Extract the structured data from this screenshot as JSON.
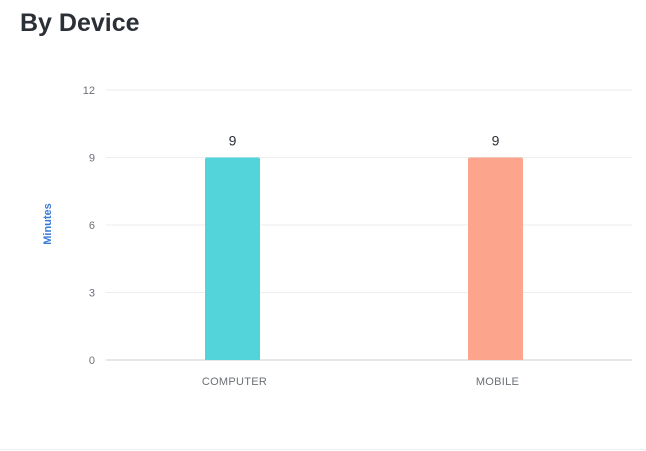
{
  "panel": {
    "title": "By Device"
  },
  "chart_data": {
    "type": "bar",
    "categories": [
      "COMPUTER",
      "MOBILE"
    ],
    "values": [
      9,
      9
    ],
    "data_labels": [
      "9",
      "9"
    ],
    "ylabel": "Minutes",
    "xlabel": "",
    "ylim": [
      0,
      12
    ],
    "yticks": [
      0,
      3,
      6,
      9,
      12
    ],
    "grid": true,
    "legend": "none",
    "colors": [
      "#52d4da",
      "#fca58c"
    ]
  }
}
